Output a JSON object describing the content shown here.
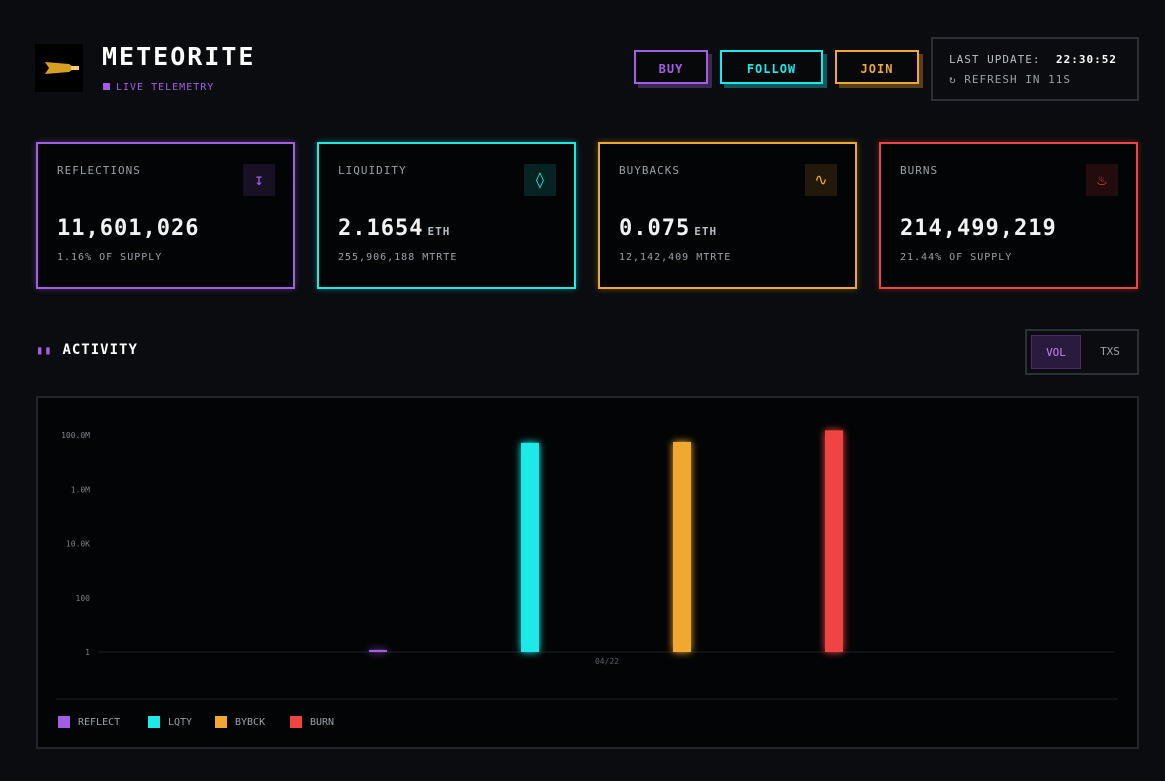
{
  "header": {
    "title": "METEORITE",
    "subtitle": "LIVE TELEMETRY",
    "buttons": [
      {
        "label": "BUY",
        "color": "#a45ee5"
      },
      {
        "label": "FOLLOW",
        "color": "#1de9e9"
      },
      {
        "label": "JOIN",
        "color": "#f0a830"
      }
    ],
    "status": {
      "label": "LAST UPDATE:",
      "time": "22:30:52",
      "refresh": "REFRESH IN 11S"
    }
  },
  "cards": [
    {
      "label": "REFLECTIONS",
      "value": "11,601,026",
      "unit": null,
      "sub": "1.16% OF SUPPLY",
      "color": "#a45ee5"
    },
    {
      "label": "LIQUIDITY",
      "value": "2.1654",
      "unit": "ETH",
      "sub": "255,906,188 MTRTE",
      "color": "#1de9e9"
    },
    {
      "label": "BUYBACKS",
      "value": "0.075",
      "unit": "ETH",
      "sub": "12,142,409 MTRTE",
      "color": "#f0a830"
    },
    {
      "label": "BURNS",
      "value": "214,499,219",
      "unit": null,
      "sub": "21.44% OF SUPPLY",
      "color": "#ef4444"
    }
  ],
  "activity": {
    "title": "ACTIVITY",
    "toggles": [
      "VOL",
      "TXS"
    ]
  },
  "chart_data": {
    "type": "bar",
    "log_scale": true,
    "categories": [
      "04/22"
    ],
    "series": [
      {
        "name": "REFLECT",
        "color": "#a45ee5",
        "values": [
          1.2
        ]
      },
      {
        "name": "LQTY",
        "color": "#1de9e9",
        "values": [
          52000000
        ]
      },
      {
        "name": "BYBCK",
        "color": "#f0a830",
        "values": [
          56000000
        ]
      },
      {
        "name": "BURN",
        "color": "#ef4444",
        "values": [
          150000000
        ]
      }
    ],
    "ylim": [
      1,
      1000000000
    ],
    "yticks": [
      1,
      100,
      {
        "value": 10000,
        "label": "10.0K"
      },
      {
        "value": 1000000,
        "label": "1.0M"
      },
      {
        "value": 100000000,
        "label": "100.0M"
      }
    ]
  }
}
